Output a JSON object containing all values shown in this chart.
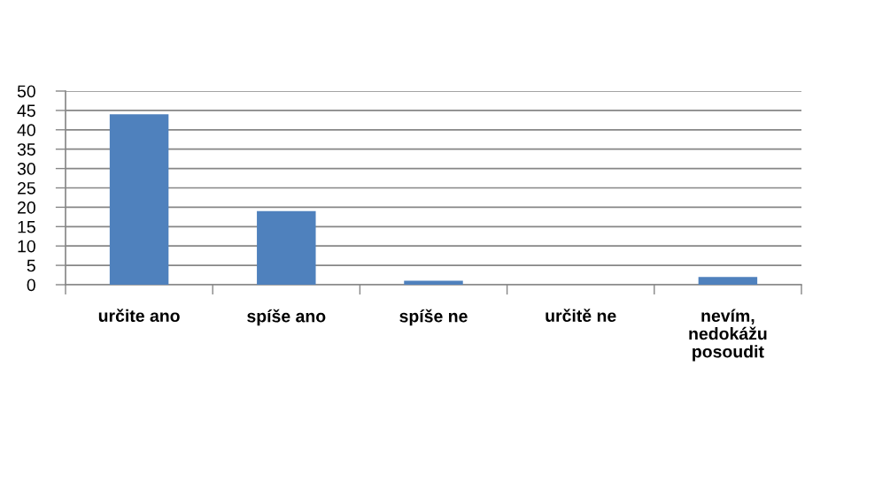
{
  "chart_data": {
    "type": "bar",
    "categories": [
      "určite ano",
      "spíše ano",
      "spíše ne",
      "určitě ne",
      "nevím, nedokážu posoudit"
    ],
    "values": [
      44,
      19,
      1,
      0,
      2
    ],
    "color": "#4f81bd",
    "ylim": [
      0,
      50
    ],
    "yticks": [
      0,
      5,
      10,
      15,
      20,
      25,
      30,
      35,
      40,
      45,
      50
    ],
    "grid": "y"
  }
}
